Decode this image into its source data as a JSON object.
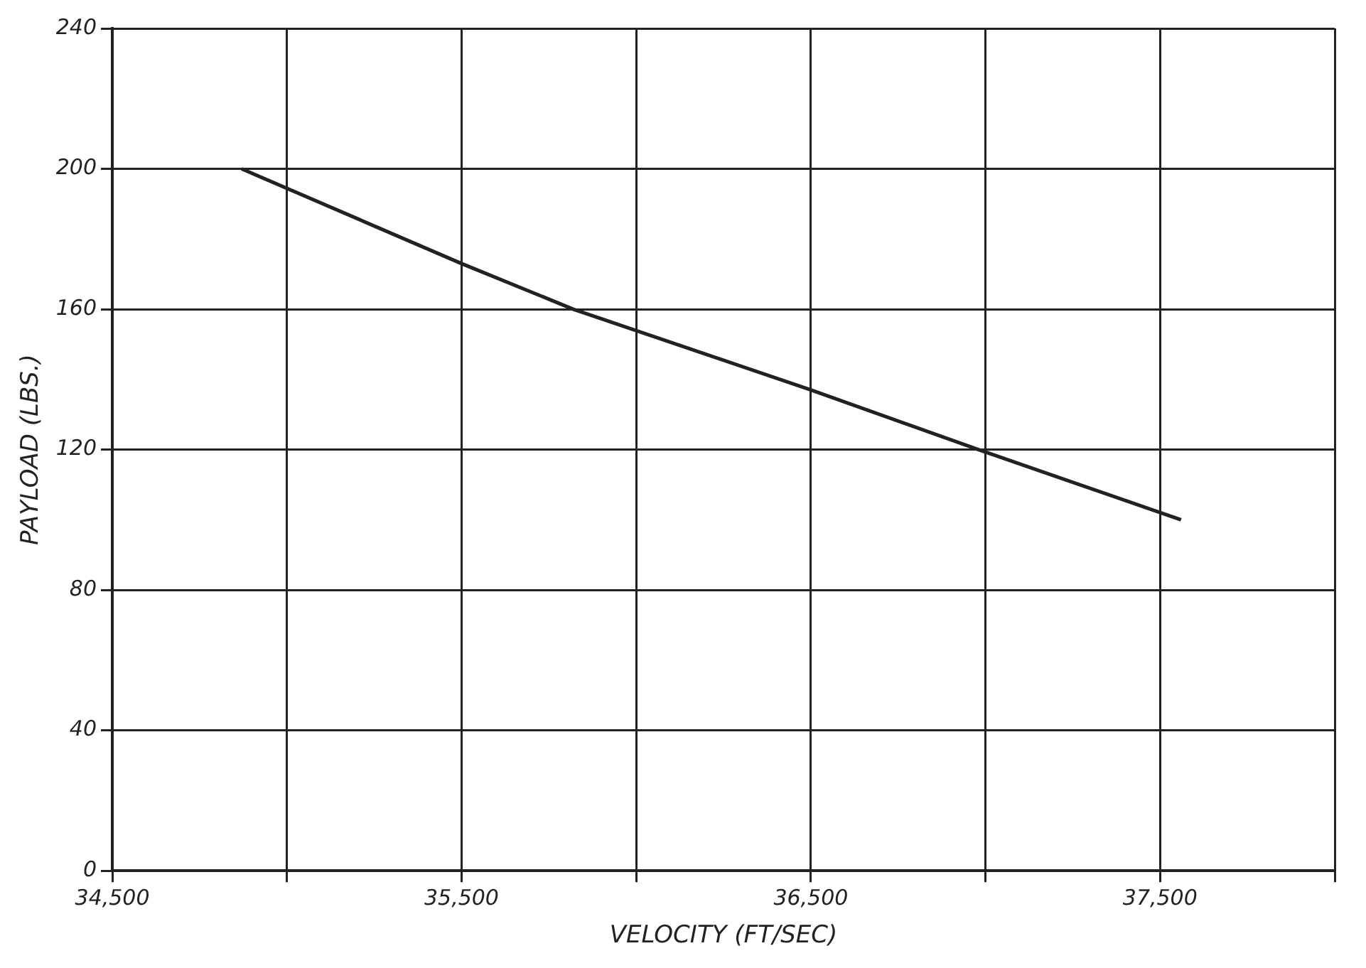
{
  "chart_data": {
    "type": "line",
    "xlabel": "VELOCITY (FT/SEC)",
    "ylabel": "PAYLOAD (LBS.)",
    "x": [
      34870,
      35500,
      35820,
      36500,
      36980,
      37560
    ],
    "series": [
      {
        "color": "#222222",
        "values": [
          200,
          173,
          160,
          137,
          120,
          100
        ]
      }
    ],
    "xlim": [
      34500,
      38000
    ],
    "xticks": [
      {
        "value": 34500,
        "label": "34,500"
      },
      {
        "value": 35000,
        "label": null
      },
      {
        "value": 35500,
        "label": "35,500"
      },
      {
        "value": 36000,
        "label": null
      },
      {
        "value": 36500,
        "label": "36,500"
      },
      {
        "value": 37000,
        "label": null
      },
      {
        "value": 37500,
        "label": "37,500"
      },
      {
        "value": 38000,
        "label": null
      }
    ],
    "ylim": [
      0,
      240
    ],
    "yticks": [
      0,
      40,
      80,
      120,
      160,
      200,
      240
    ],
    "grid": true,
    "legend": false,
    "marker": "none",
    "line_style": "solid"
  }
}
